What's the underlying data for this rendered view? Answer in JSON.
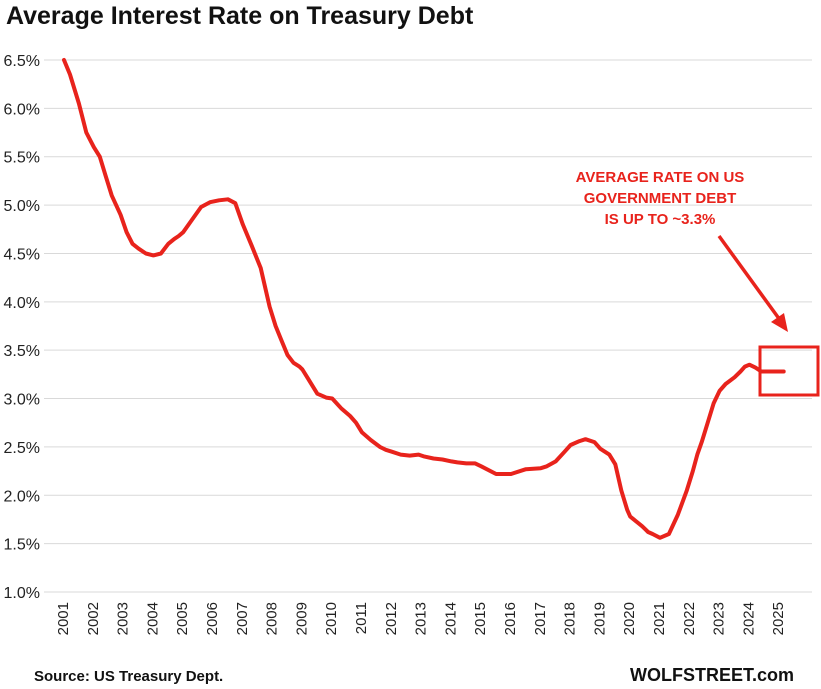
{
  "page": {
    "title": "Average Interest Rate on Treasury Debt",
    "source": "Source: US Treasury Dept.",
    "credit": "WOLFSTREET.com"
  },
  "chart_data": {
    "type": "line",
    "title": "Average Interest Rate on Treasury Debt",
    "xlabel": "",
    "ylabel": "",
    "xlim": [
      2001.0,
      2025.2
    ],
    "ylim": [
      1.0,
      6.5
    ],
    "grid": "horizontal",
    "line_color": "#e8231c",
    "y_ticks": [
      "1.0%",
      "1.5%",
      "2.0%",
      "2.5%",
      "3.0%",
      "3.5%",
      "4.0%",
      "4.5%",
      "5.0%",
      "5.5%",
      "6.0%",
      "6.5%"
    ],
    "x_ticks": [
      "2001",
      "2002",
      "2003",
      "2004",
      "2005",
      "2006",
      "2007",
      "2008",
      "2009",
      "2010",
      "2011",
      "2012",
      "2013",
      "2014",
      "2015",
      "2016",
      "2017",
      "2018",
      "2019",
      "2020",
      "2021",
      "2022",
      "2023",
      "2024",
      "2025"
    ],
    "series": [
      {
        "x": [
          2001.0,
          2001.2,
          2001.5,
          2001.75,
          2002.0,
          2002.2,
          2002.4,
          2002.6,
          2002.9,
          2003.1,
          2003.3,
          2003.5,
          2003.75,
          2004.0,
          2004.25,
          2004.5,
          2004.7,
          2004.85,
          2005.0,
          2005.3,
          2005.6,
          2005.9,
          2006.2,
          2006.5,
          2006.75,
          2007.0,
          2007.3,
          2007.6,
          2007.9,
          2008.1,
          2008.3,
          2008.5,
          2008.7,
          2008.9,
          2009.0,
          2009.2,
          2009.5,
          2009.8,
          2010.0,
          2010.3,
          2010.6,
          2010.8,
          2011.0,
          2011.3,
          2011.6,
          2011.8,
          2012.0,
          2012.3,
          2012.6,
          2012.9,
          2013.1,
          2013.4,
          2013.7,
          2014.0,
          2014.2,
          2014.5,
          2014.8,
          2015.0,
          2015.5,
          2016.0,
          2016.5,
          2017.0,
          2017.2,
          2017.5,
          2017.8,
          2018.0,
          2018.3,
          2018.5,
          2018.8,
          2019.0,
          2019.3,
          2019.5,
          2019.7,
          2019.9,
          2020.0,
          2020.2,
          2020.4,
          2020.5,
          2020.6,
          2020.75,
          2021.0,
          2021.3,
          2021.6,
          2021.9,
          2022.1,
          2022.25,
          2022.4,
          2022.6,
          2022.8,
          2023.0,
          2023.2,
          2023.5,
          2023.7,
          2023.85,
          2024.0,
          2024.2,
          2024.4,
          2024.55,
          2024.7,
          2024.85,
          2025.0,
          2025.15
        ],
        "y": [
          6.5,
          6.35,
          6.05,
          5.75,
          5.6,
          5.5,
          5.3,
          5.1,
          4.9,
          4.72,
          4.6,
          4.55,
          4.5,
          4.48,
          4.5,
          4.6,
          4.65,
          4.68,
          4.72,
          4.85,
          4.98,
          5.03,
          5.05,
          5.06,
          5.02,
          4.8,
          4.58,
          4.35,
          3.95,
          3.75,
          3.6,
          3.45,
          3.37,
          3.33,
          3.3,
          3.2,
          3.05,
          3.01,
          3.0,
          2.9,
          2.82,
          2.75,
          2.65,
          2.57,
          2.5,
          2.47,
          2.45,
          2.42,
          2.41,
          2.42,
          2.4,
          2.38,
          2.37,
          2.35,
          2.34,
          2.33,
          2.33,
          2.3,
          2.22,
          2.22,
          2.27,
          2.28,
          2.3,
          2.35,
          2.45,
          2.52,
          2.56,
          2.58,
          2.55,
          2.48,
          2.42,
          2.32,
          2.05,
          1.85,
          1.78,
          1.73,
          1.68,
          1.65,
          1.62,
          1.6,
          1.56,
          1.6,
          1.8,
          2.05,
          2.25,
          2.42,
          2.55,
          2.75,
          2.95,
          3.08,
          3.15,
          3.22,
          3.28,
          3.33,
          3.35,
          3.32,
          3.28,
          3.28,
          3.28,
          3.28,
          3.28,
          3.28
        ]
      }
    ],
    "annotations": [
      {
        "lines": [
          "AVERAGE RATE ON US",
          "GOVERNMENT DEBT",
          "IS UP TO ~3.3%"
        ],
        "color": "#e8231c"
      }
    ],
    "highlight_box_color": "#e8231c"
  }
}
